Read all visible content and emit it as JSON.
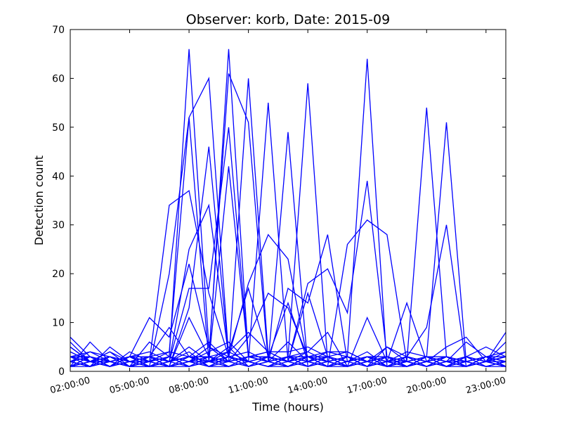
{
  "chart_data": {
    "type": "line",
    "title": "Observer: korb, Date: 2015-09",
    "xlabel": "Time (hours)",
    "ylabel": "Detection count",
    "xlim": [
      2,
      24
    ],
    "ylim": [
      0,
      70
    ],
    "x_tick_values": [
      2,
      5,
      8,
      11,
      14,
      17,
      20,
      23
    ],
    "x_tick_labels": [
      "02:00:00",
      "05:00:00",
      "08:00:00",
      "11:00:00",
      "14:00:00",
      "17:00:00",
      "20:00:00",
      "23:00:00"
    ],
    "y_ticks": [
      0,
      10,
      20,
      30,
      40,
      50,
      60,
      70
    ],
    "line_color": "#0000ff",
    "grid": false,
    "x": [
      2,
      3,
      4,
      5,
      6,
      7,
      8,
      9,
      10,
      11,
      12,
      13,
      14,
      15,
      16,
      17,
      18,
      19,
      20,
      21,
      22,
      23,
      24
    ],
    "series": [
      {
        "values": [
          7,
          3,
          1,
          2,
          1,
          3,
          66,
          5,
          2,
          1,
          3,
          2,
          4,
          2,
          3,
          1,
          2,
          3,
          1,
          2,
          3,
          2,
          1
        ]
      },
      {
        "values": [
          5,
          2,
          3,
          1,
          2,
          4,
          52,
          60,
          3,
          2,
          1,
          3,
          2,
          1,
          2,
          3,
          2,
          1,
          3,
          2,
          1,
          2,
          3
        ]
      },
      {
        "values": [
          3,
          4,
          2,
          3,
          1,
          2,
          3,
          2,
          66,
          3,
          2,
          1,
          3,
          2,
          1,
          2,
          3,
          2,
          1,
          3,
          2,
          1,
          2
        ]
      },
      {
        "values": [
          2,
          1,
          3,
          2,
          3,
          1,
          2,
          3,
          61,
          51,
          2,
          3,
          1,
          2,
          3,
          1,
          2,
          3,
          2,
          1,
          3,
          2,
          4
        ]
      },
      {
        "values": [
          4,
          2,
          1,
          3,
          2,
          3,
          1,
          2,
          2,
          60,
          3,
          2,
          1,
          3,
          2,
          1,
          3,
          2,
          1,
          2,
          3,
          1,
          2
        ]
      },
      {
        "values": [
          1,
          3,
          2,
          1,
          3,
          2,
          4,
          1,
          3,
          2,
          55,
          2,
          3,
          1,
          2,
          3,
          1,
          2,
          3,
          1,
          2,
          3,
          1
        ]
      },
      {
        "values": [
          2,
          1,
          2,
          3,
          1,
          2,
          3,
          2,
          1,
          3,
          2,
          49,
          1,
          2,
          3,
          2,
          1,
          3,
          2,
          1,
          3,
          2,
          3
        ]
      },
      {
        "values": [
          3,
          2,
          4,
          1,
          2,
          3,
          2,
          1,
          3,
          2,
          1,
          3,
          59,
          2,
          1,
          3,
          2,
          1,
          2,
          3,
          1,
          2,
          1
        ]
      },
      {
        "values": [
          1,
          2,
          3,
          2,
          1,
          2,
          3,
          2,
          3,
          1,
          2,
          3,
          2,
          1,
          3,
          64,
          1,
          2,
          3,
          2,
          1,
          3,
          2
        ]
      },
      {
        "values": [
          2,
          3,
          1,
          2,
          3,
          1,
          2,
          3,
          1,
          2,
          3,
          1,
          2,
          3,
          1,
          2,
          3,
          2,
          54,
          3,
          1,
          2,
          3
        ]
      },
      {
        "values": [
          1,
          2,
          1,
          3,
          2,
          3,
          1,
          2,
          3,
          1,
          2,
          3,
          1,
          2,
          3,
          1,
          2,
          1,
          3,
          51,
          2,
          3,
          2
        ]
      },
      {
        "values": [
          6,
          2,
          1,
          3,
          2,
          34,
          37,
          16,
          3,
          2,
          1,
          2,
          3,
          1,
          2,
          3,
          1,
          2,
          1,
          3,
          2,
          1,
          2
        ]
      },
      {
        "values": [
          2,
          1,
          3,
          2,
          1,
          20,
          52,
          2,
          42,
          3,
          2,
          1,
          3,
          2,
          1,
          2,
          3,
          1,
          2,
          1,
          3,
          2,
          1
        ]
      },
      {
        "values": [
          3,
          2,
          1,
          2,
          3,
          2,
          25,
          34,
          3,
          2,
          1,
          3,
          2,
          1,
          2,
          3,
          2,
          1,
          3,
          2,
          1,
          3,
          2
        ]
      },
      {
        "values": [
          1,
          3,
          2,
          3,
          1,
          2,
          17,
          17,
          50,
          3,
          2,
          1,
          3,
          2,
          1,
          3,
          2,
          1,
          2,
          3,
          1,
          2,
          2
        ]
      },
      {
        "values": [
          2,
          1,
          2,
          1,
          3,
          1,
          13,
          46,
          3,
          2,
          1,
          3,
          2,
          1,
          3,
          2,
          1,
          3,
          2,
          1,
          3,
          2,
          3
        ]
      },
      {
        "values": [
          1,
          2,
          3,
          1,
          2,
          3,
          1,
          2,
          3,
          18,
          28,
          23,
          2,
          3,
          1,
          2,
          3,
          1,
          2,
          3,
          1,
          2,
          1
        ]
      },
      {
        "values": [
          2,
          3,
          1,
          2,
          1,
          2,
          3,
          1,
          2,
          3,
          2,
          17,
          14,
          28,
          2,
          3,
          1,
          2,
          3,
          1,
          2,
          3,
          2
        ]
      },
      {
        "values": [
          1,
          2,
          2,
          3,
          1,
          3,
          2,
          2,
          1,
          2,
          3,
          2,
          18,
          21,
          12,
          39,
          3,
          1,
          2,
          3,
          2,
          1,
          2
        ]
      },
      {
        "values": [
          2,
          1,
          3,
          1,
          2,
          1,
          3,
          2,
          3,
          2,
          1,
          3,
          2,
          1,
          26,
          31,
          28,
          2,
          3,
          1,
          2,
          3,
          1
        ]
      },
      {
        "values": [
          1,
          2,
          1,
          2,
          3,
          2,
          1,
          3,
          2,
          7,
          16,
          13,
          3,
          2,
          1,
          11,
          2,
          14,
          2,
          1,
          3,
          2,
          2
        ]
      },
      {
        "values": [
          1,
          6,
          2,
          3,
          11,
          7,
          22,
          5,
          2,
          3,
          2,
          1,
          3,
          2,
          1,
          2,
          1,
          3,
          9,
          30,
          1,
          2,
          3
        ]
      },
      {
        "values": [
          3,
          1,
          5,
          2,
          3,
          9,
          3,
          3,
          4,
          8,
          4,
          4,
          5,
          3,
          2,
          4,
          1,
          2,
          1,
          3,
          2,
          1,
          2
        ]
      },
      {
        "values": [
          2,
          3,
          1,
          4,
          2,
          1,
          11,
          3,
          2,
          3,
          4,
          2,
          16,
          3,
          4,
          2,
          3,
          1,
          2,
          3,
          2,
          1,
          1
        ]
      },
      {
        "values": [
          1,
          2,
          3,
          2,
          2,
          1,
          1,
          2,
          4,
          17,
          3,
          14,
          2,
          3,
          1,
          2,
          3,
          1,
          3,
          2,
          1,
          3,
          2
        ]
      },
      {
        "values": [
          4,
          2,
          2,
          1,
          6,
          3,
          2,
          4,
          6,
          2,
          1,
          3,
          4,
          8,
          1,
          2,
          5,
          2,
          3,
          2,
          6,
          3,
          1
        ]
      },
      {
        "values": [
          2,
          1,
          2,
          1,
          1,
          2,
          3,
          2,
          4,
          2,
          3,
          2,
          1,
          2,
          3,
          1,
          2,
          2,
          1,
          2,
          1,
          2,
          8
        ]
      },
      {
        "values": [
          3,
          2,
          4,
          2,
          2,
          1,
          2,
          5,
          3,
          4,
          2,
          3,
          3,
          4,
          4,
          2,
          3,
          1,
          2,
          5,
          7,
          2,
          6
        ]
      },
      {
        "values": [
          5,
          2,
          1,
          3,
          4,
          2,
          5,
          2,
          5,
          1,
          2,
          6,
          2,
          4,
          3,
          1,
          5,
          3,
          2,
          1,
          3,
          5,
          3
        ]
      },
      {
        "values": [
          2,
          4,
          3,
          2,
          3,
          4,
          3,
          6,
          2,
          3,
          4,
          2,
          3,
          1,
          2,
          3,
          2,
          4,
          3,
          2,
          2,
          3,
          4
        ]
      },
      {
        "values": [
          1,
          1,
          2,
          1,
          1,
          1,
          2,
          1,
          1,
          2,
          1,
          1,
          2,
          1,
          1,
          2,
          1,
          1,
          2,
          1,
          1,
          2,
          1
        ]
      },
      {
        "values": [
          3,
          3,
          2,
          3,
          3,
          2,
          3,
          3,
          2,
          3,
          3,
          2,
          3,
          3,
          2,
          3,
          3,
          2,
          3,
          3,
          2,
          3,
          3
        ]
      }
    ]
  }
}
